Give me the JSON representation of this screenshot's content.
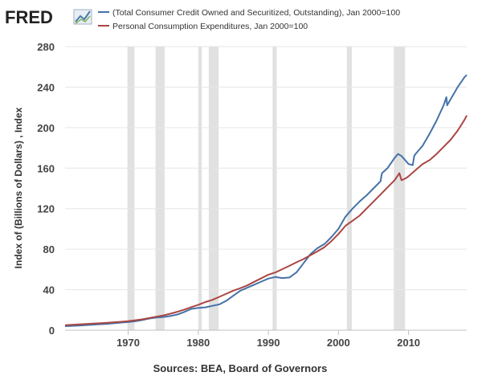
{
  "logo": {
    "text": "FRED",
    "icon": "fred-chart-icon"
  },
  "chart_data": {
    "type": "line",
    "title": "",
    "xlabel": "",
    "ylabel": "Index of (Billions of Dollars) , Index",
    "xlim": [
      1961.0,
      2018.3
    ],
    "ylim": [
      0,
      280
    ],
    "y_ticks": [
      0,
      40,
      80,
      120,
      160,
      200,
      240,
      280
    ],
    "x_ticks": [
      1970,
      1980,
      1990,
      2000,
      2010
    ],
    "x_tick_labels": [
      "1970",
      "1980",
      "1990",
      "2000",
      "2010"
    ],
    "grid": "horizontal",
    "legend_position": "top",
    "recessions": [
      [
        1969.9,
        1970.9
      ],
      [
        1973.9,
        1975.2
      ],
      [
        1980.0,
        1980.5
      ],
      [
        1981.5,
        1982.9
      ],
      [
        1990.6,
        1991.2
      ],
      [
        2001.2,
        2001.9
      ],
      [
        2007.9,
        2009.5
      ]
    ],
    "series": [
      {
        "name": "(Total Consumer Credit Owned and Securitized, Outstanding), Jan 2000=100",
        "color": "#4572a7",
        "points": [
          [
            1961,
            4.0
          ],
          [
            1963,
            4.5
          ],
          [
            1965,
            5.5
          ],
          [
            1967,
            6.3
          ],
          [
            1969,
            7.5
          ],
          [
            1970,
            8.0
          ],
          [
            1971,
            8.8
          ],
          [
            1972,
            10.0
          ],
          [
            1973,
            11.5
          ],
          [
            1974,
            12.5
          ],
          [
            1975,
            13.0
          ],
          [
            1976,
            14.0
          ],
          [
            1977,
            15.5
          ],
          [
            1978,
            18.0
          ],
          [
            1979,
            21.0
          ],
          [
            1980,
            22.0
          ],
          [
            1981,
            22.5
          ],
          [
            1982,
            24.0
          ],
          [
            1983,
            25.5
          ],
          [
            1984,
            29.0
          ],
          [
            1985,
            34.0
          ],
          [
            1986,
            39.0
          ],
          [
            1987,
            42.0
          ],
          [
            1988,
            45.0
          ],
          [
            1989,
            48.0
          ],
          [
            1990,
            51.0
          ],
          [
            1991,
            52.5
          ],
          [
            1992,
            51.5
          ],
          [
            1993,
            52.0
          ],
          [
            1994,
            57.0
          ],
          [
            1995,
            66.0
          ],
          [
            1996,
            75.0
          ],
          [
            1997,
            81.0
          ],
          [
            1998,
            85.0
          ],
          [
            1999,
            92.0
          ],
          [
            2000,
            100.0
          ],
          [
            2001,
            112.0
          ],
          [
            2002,
            120.0
          ],
          [
            2003,
            127.0
          ],
          [
            2004,
            133.0
          ],
          [
            2005,
            140.0
          ],
          [
            2006,
            147.0
          ],
          [
            2006.2,
            155.0
          ],
          [
            2007,
            160.0
          ],
          [
            2008,
            170.0
          ],
          [
            2008.5,
            174.0
          ],
          [
            2009,
            172.0
          ],
          [
            2009.5,
            168.0
          ],
          [
            2010,
            164.0
          ],
          [
            2010.6,
            163.0
          ],
          [
            2010.8,
            172.0
          ],
          [
            2011,
            174.0
          ],
          [
            2012,
            182.0
          ],
          [
            2013,
            194.0
          ],
          [
            2014,
            207.0
          ],
          [
            2015,
            222.0
          ],
          [
            2015.4,
            230.0
          ],
          [
            2015.5,
            222.0
          ],
          [
            2016,
            228.0
          ],
          [
            2017,
            240.0
          ],
          [
            2018,
            250.0
          ],
          [
            2018.3,
            252.0
          ]
        ]
      },
      {
        "name": "Personal Consumption Expenditures, Jan 2000=100",
        "color": "#aa4643",
        "points": [
          [
            1961,
            5.0
          ],
          [
            1963,
            5.7
          ],
          [
            1965,
            6.5
          ],
          [
            1967,
            7.3
          ],
          [
            1969,
            8.3
          ],
          [
            1970,
            9.0
          ],
          [
            1971,
            9.8
          ],
          [
            1972,
            10.7
          ],
          [
            1973,
            12.0
          ],
          [
            1974,
            13.3
          ],
          [
            1975,
            14.6
          ],
          [
            1976,
            16.3
          ],
          [
            1977,
            18.2
          ],
          [
            1978,
            20.3
          ],
          [
            1979,
            22.8
          ],
          [
            1980,
            25.1
          ],
          [
            1981,
            27.8
          ],
          [
            1982,
            29.9
          ],
          [
            1983,
            32.9
          ],
          [
            1984,
            36.0
          ],
          [
            1985,
            39.0
          ],
          [
            1986,
            41.5
          ],
          [
            1987,
            44.3
          ],
          [
            1988,
            47.8
          ],
          [
            1989,
            51.3
          ],
          [
            1990,
            54.8
          ],
          [
            1991,
            57.0
          ],
          [
            1992,
            60.3
          ],
          [
            1993,
            63.5
          ],
          [
            1994,
            67.0
          ],
          [
            1995,
            70.2
          ],
          [
            1996,
            74.0
          ],
          [
            1997,
            77.8
          ],
          [
            1998,
            82.0
          ],
          [
            1999,
            88.0
          ],
          [
            2000,
            95.0
          ],
          [
            2001,
            103.0
          ],
          [
            2002,
            108.0
          ],
          [
            2003,
            113.0
          ],
          [
            2004,
            120.0
          ],
          [
            2005,
            127.0
          ],
          [
            2006,
            134.0
          ],
          [
            2007,
            141.0
          ],
          [
            2008,
            148.0
          ],
          [
            2008.7,
            155.0
          ],
          [
            2009,
            148.0
          ],
          [
            2009.6,
            150.0
          ],
          [
            2010,
            152.0
          ],
          [
            2011,
            158.0
          ],
          [
            2012,
            164.0
          ],
          [
            2013,
            168.0
          ],
          [
            2014,
            174.0
          ],
          [
            2015,
            181.0
          ],
          [
            2016,
            188.0
          ],
          [
            2017,
            197.0
          ],
          [
            2018,
            208.0
          ],
          [
            2018.3,
            212.0
          ]
        ]
      }
    ]
  },
  "source": "Sources: BEA, Board of Governors"
}
